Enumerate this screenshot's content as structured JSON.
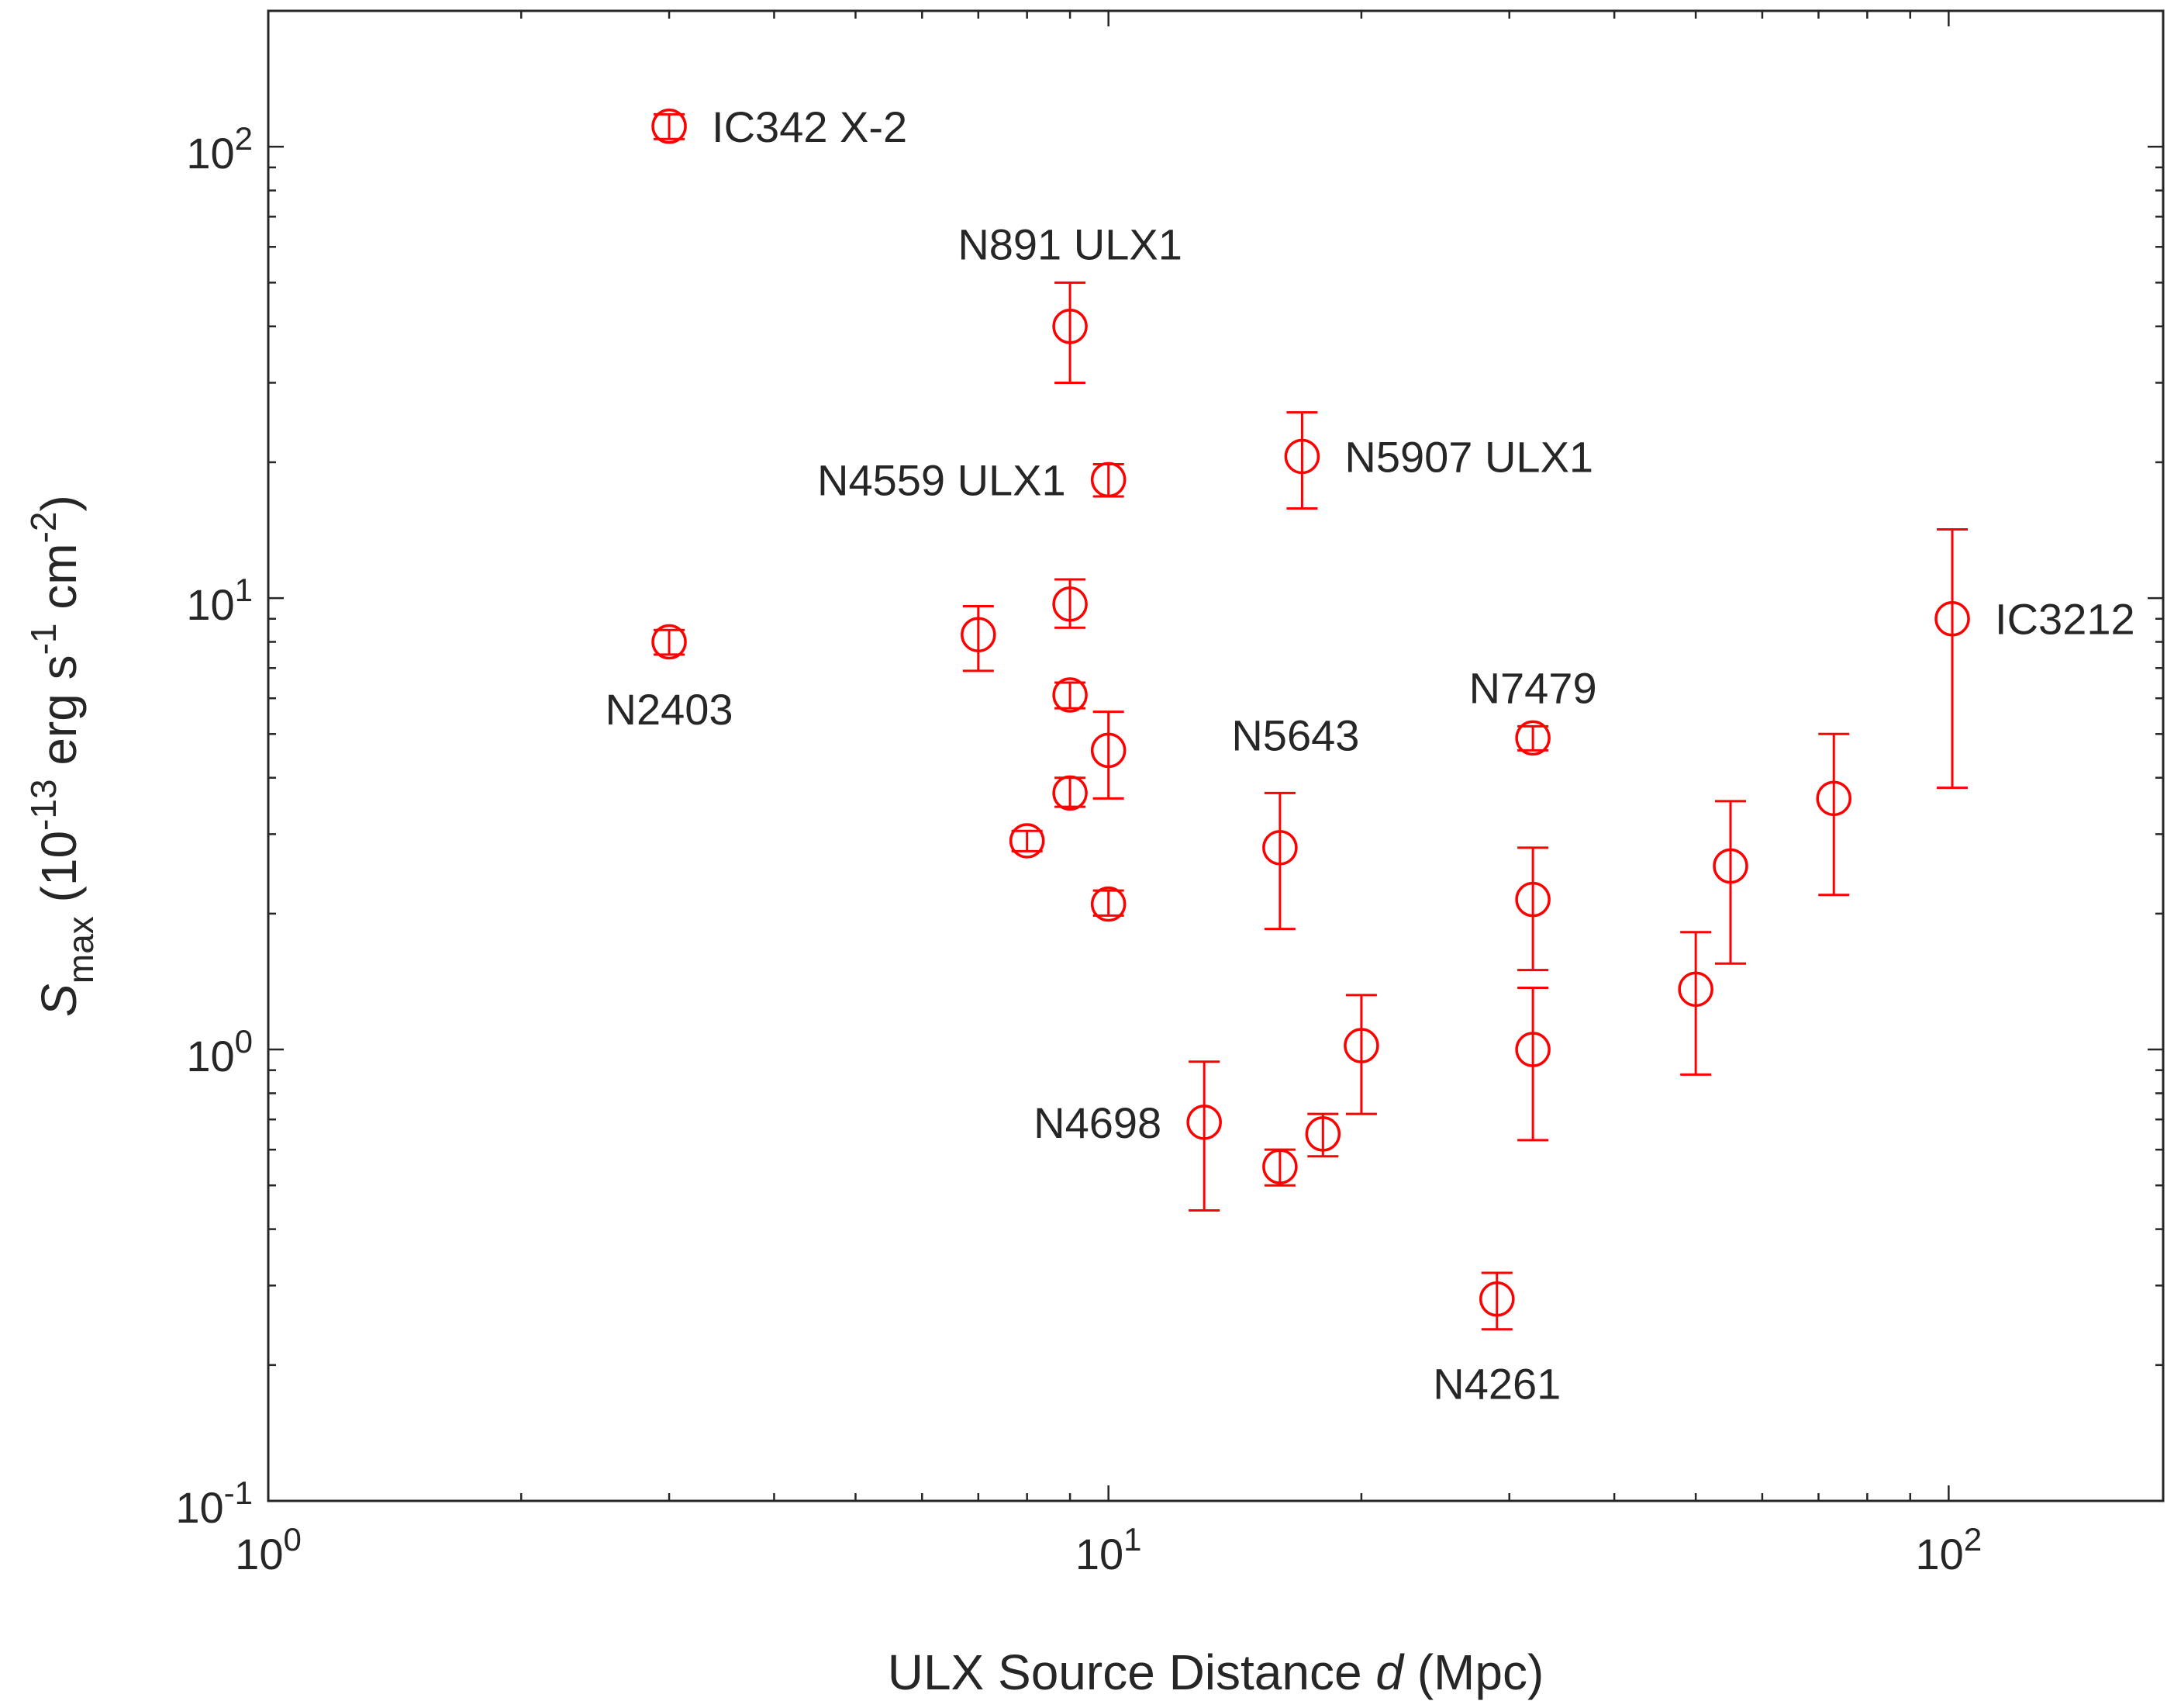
{
  "chart_data": {
    "type": "scatter",
    "title": "",
    "xlabel": {
      "prefix": "ULX Source Distance ",
      "variable": "d",
      "suffix": " (Mpc)"
    },
    "ylabel": {
      "symbol": "S",
      "subscript": "max",
      "text_before": " (10",
      "exp1": "-13",
      "text_mid1": " erg s",
      "exp2": "-1",
      "text_mid2": " cm",
      "exp3": "-2",
      "text_after": ")"
    },
    "x_scale": "log",
    "y_scale": "log",
    "xlim": [
      1,
      180
    ],
    "ylim": [
      0.1,
      200
    ],
    "x_ticks": [
      {
        "value": 1,
        "base": "10",
        "exp": "0"
      },
      {
        "value": 10,
        "base": "10",
        "exp": "1"
      },
      {
        "value": 100,
        "base": "10",
        "exp": "2"
      }
    ],
    "y_ticks": [
      {
        "value": 0.1,
        "base": "10",
        "exp": "-1"
      },
      {
        "value": 1,
        "base": "10",
        "exp": "0"
      },
      {
        "value": 10,
        "base": "10",
        "exp": "1"
      },
      {
        "value": 100,
        "base": "10",
        "exp": "2"
      }
    ],
    "grid": false,
    "marker_color": "#ff0000",
    "axis_color": "#262626",
    "points": [
      {
        "x": 3.0,
        "y": 111,
        "lo": 104,
        "hi": 118,
        "label": "IC342 X-2",
        "anchor": "right"
      },
      {
        "x": 9.0,
        "y": 40,
        "lo": 30,
        "hi": 50,
        "label": "N891 ULX1",
        "anchor": "above"
      },
      {
        "x": 10.0,
        "y": 18.3,
        "lo": 16.8,
        "hi": 19.8,
        "label": "N4559 ULX1",
        "anchor": "left"
      },
      {
        "x": 17.0,
        "y": 20.6,
        "lo": 15.8,
        "hi": 25.8,
        "label": "N5907 ULX1",
        "anchor": "right"
      },
      {
        "x": 3.0,
        "y": 8.0,
        "lo": 7.5,
        "hi": 8.5,
        "label": "N2403",
        "anchor": "below"
      },
      {
        "x": 7.0,
        "y": 8.3,
        "lo": 6.9,
        "hi": 9.6,
        "label": "",
        "anchor": "none"
      },
      {
        "x": 9.0,
        "y": 9.7,
        "lo": 8.6,
        "hi": 11.0,
        "label": "",
        "anchor": "none"
      },
      {
        "x": 9.0,
        "y": 6.1,
        "lo": 5.7,
        "hi": 6.5,
        "label": "",
        "anchor": "none"
      },
      {
        "x": 10.0,
        "y": 4.6,
        "lo": 3.6,
        "hi": 5.6,
        "label": "",
        "anchor": "none"
      },
      {
        "x": 9.0,
        "y": 3.7,
        "lo": 3.45,
        "hi": 4.0,
        "label": "",
        "anchor": "none"
      },
      {
        "x": 8.0,
        "y": 2.9,
        "lo": 2.75,
        "hi": 3.05,
        "label": "",
        "anchor": "none"
      },
      {
        "x": 10.0,
        "y": 2.1,
        "lo": 1.98,
        "hi": 2.25,
        "label": "",
        "anchor": "none"
      },
      {
        "x": 16.0,
        "y": 2.8,
        "lo": 1.85,
        "hi": 3.7,
        "label": "N5643",
        "anchor": "above-left"
      },
      {
        "x": 32.0,
        "y": 4.9,
        "lo": 4.6,
        "hi": 5.2,
        "label": "N7479",
        "anchor": "above"
      },
      {
        "x": 32.0,
        "y": 2.15,
        "lo": 1.5,
        "hi": 2.8,
        "label": "",
        "anchor": "none"
      },
      {
        "x": 32.0,
        "y": 1.0,
        "lo": 0.63,
        "hi": 1.37,
        "label": "",
        "anchor": "none"
      },
      {
        "x": 13.0,
        "y": 0.69,
        "lo": 0.44,
        "hi": 0.94,
        "label": "N4698",
        "anchor": "left"
      },
      {
        "x": 16.0,
        "y": 0.55,
        "lo": 0.5,
        "hi": 0.6,
        "label": "",
        "anchor": "none"
      },
      {
        "x": 18.0,
        "y": 0.65,
        "lo": 0.58,
        "hi": 0.72,
        "label": "",
        "anchor": "none"
      },
      {
        "x": 20.0,
        "y": 1.02,
        "lo": 0.72,
        "hi": 1.32,
        "label": "",
        "anchor": "none"
      },
      {
        "x": 29.0,
        "y": 0.28,
        "lo": 0.24,
        "hi": 0.32,
        "label": "N4261",
        "anchor": "below"
      },
      {
        "x": 50.0,
        "y": 1.36,
        "lo": 0.88,
        "hi": 1.82,
        "label": "",
        "anchor": "none"
      },
      {
        "x": 55.0,
        "y": 2.55,
        "lo": 1.55,
        "hi": 3.55,
        "label": "",
        "anchor": "none"
      },
      {
        "x": 73.0,
        "y": 3.6,
        "lo": 2.2,
        "hi": 5.0,
        "label": "",
        "anchor": "none"
      },
      {
        "x": 101.0,
        "y": 9.0,
        "lo": 3.8,
        "hi": 14.2,
        "label": "IC3212",
        "anchor": "right"
      }
    ]
  }
}
